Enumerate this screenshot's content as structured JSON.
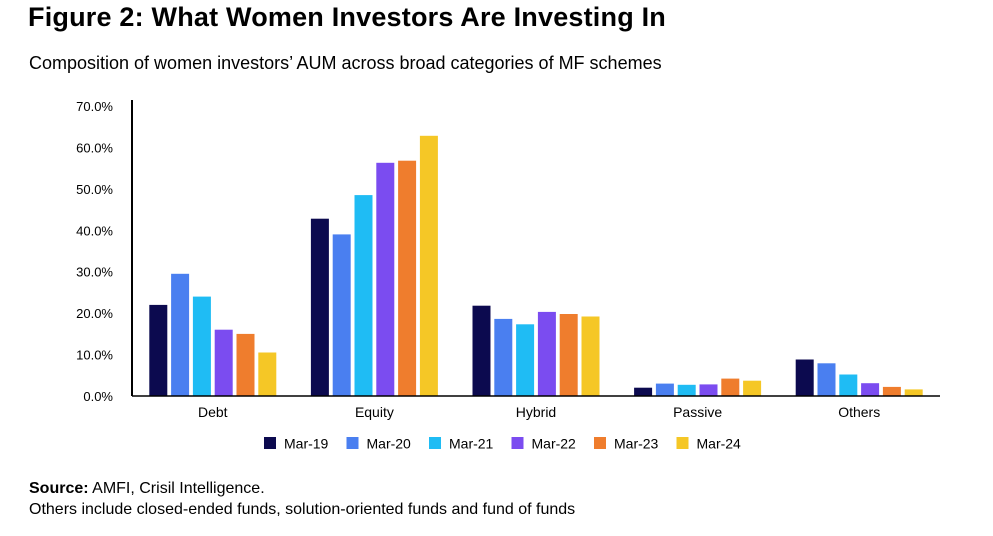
{
  "header": {
    "title": "Figure 2: What Women Investors Are Investing In",
    "subtitle": "Composition of women investors’ AUM across broad categories of MF schemes"
  },
  "footer": {
    "source_label": "Source:",
    "source_text": " AMFI, Crisil Intelligence.",
    "note": "Others include closed-ended funds, solution-oriented funds and fund of funds"
  },
  "chart_data": {
    "type": "bar",
    "title": "Figure 2: What Women Investors Are Investing In",
    "subtitle": "Composition of women investors’ AUM across broad categories of MF schemes",
    "xlabel": "",
    "ylabel": "",
    "ylim": [
      0,
      70
    ],
    "yticks": [
      0,
      10,
      20,
      30,
      40,
      50,
      60,
      70
    ],
    "ytick_labels": [
      "0.0%",
      "10.0%",
      "20.0%",
      "30.0%",
      "40.0%",
      "50.0%",
      "60.0%",
      "70.0%"
    ],
    "categories": [
      "Debt",
      "Equity",
      "Hybrid",
      "Passive",
      "Others"
    ],
    "series": [
      {
        "name": "Mar-19",
        "color": "#0c0a4f",
        "values": [
          22.0,
          42.8,
          21.8,
          2.0,
          8.8
        ]
      },
      {
        "name": "Mar-20",
        "color": "#4a7ff0",
        "values": [
          29.5,
          39.0,
          18.6,
          3.0,
          7.9
        ]
      },
      {
        "name": "Mar-21",
        "color": "#1fbcf4",
        "values": [
          24.0,
          48.5,
          17.3,
          2.7,
          5.2
        ]
      },
      {
        "name": "Mar-22",
        "color": "#7b4cf0",
        "values": [
          16.0,
          56.3,
          20.3,
          2.8,
          3.1
        ]
      },
      {
        "name": "Mar-23",
        "color": "#ef7d2d",
        "values": [
          15.0,
          56.8,
          19.8,
          4.2,
          2.2
        ]
      },
      {
        "name": "Mar-24",
        "color": "#f5c726",
        "values": [
          10.5,
          62.8,
          19.2,
          3.7,
          1.6
        ]
      }
    ],
    "legend_position": "bottom",
    "grid": false
  }
}
